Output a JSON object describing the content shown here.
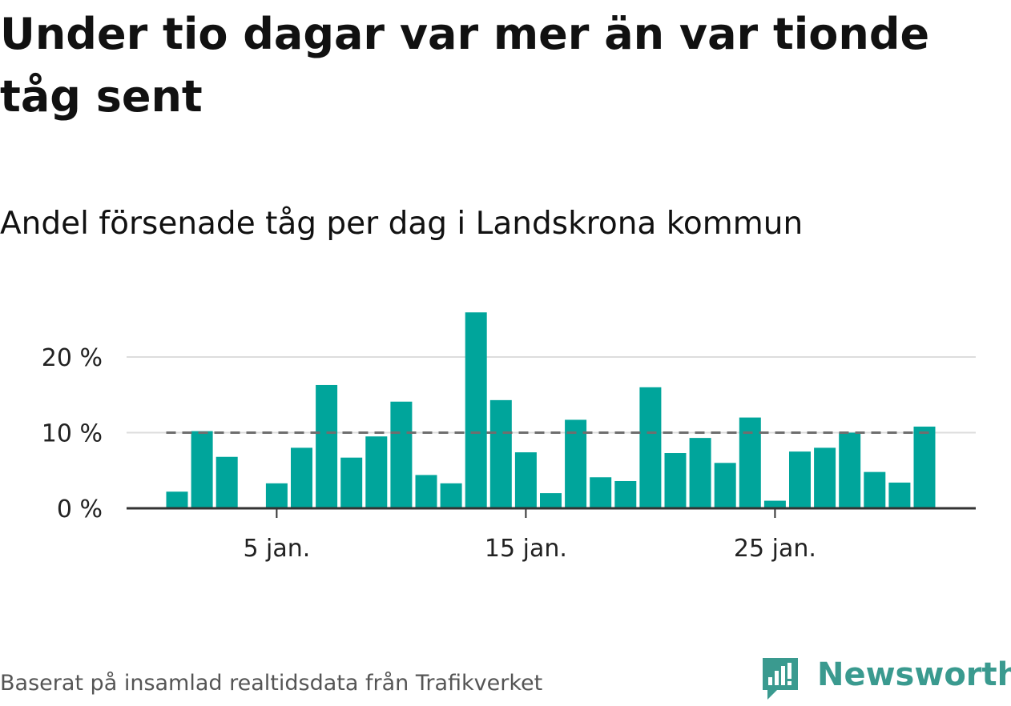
{
  "title": "Under tio dagar var mer än var tionde tåg sent",
  "subtitle": "Andel försenade tåg per dag i Landskrona kommun",
  "source": "Baserat på insamlad realtidsdata från Trafikverket",
  "logo": {
    "text": "Newsworthy",
    "icon": "newsworthy-bar-chart-icon",
    "color": "#3a9a8f"
  },
  "colors": {
    "bar": "#00a59b",
    "reference_line": "#6e6e6e",
    "grid": "#dddddd",
    "axis": "#333333"
  },
  "chart_data": {
    "type": "bar",
    "x": [
      1,
      2,
      3,
      4,
      5,
      6,
      7,
      8,
      9,
      10,
      11,
      12,
      13,
      14,
      15,
      16,
      17,
      18,
      19,
      20,
      21,
      22,
      23,
      24,
      25,
      26,
      27,
      28,
      29,
      30,
      31
    ],
    "values": [
      2.2,
      10.2,
      6.8,
      0,
      3.3,
      8.0,
      16.3,
      6.7,
      9.5,
      14.1,
      4.4,
      3.3,
      25.9,
      14.3,
      7.4,
      2.0,
      11.7,
      4.1,
      3.6,
      16.0,
      7.3,
      9.3,
      6.0,
      12.0,
      1.0,
      7.5,
      8.0,
      10.0,
      4.8,
      3.4,
      10.8
    ],
    "reference_line": 10,
    "ylim": [
      0,
      26
    ],
    "yticks": [
      {
        "value": 0,
        "label": "0 %"
      },
      {
        "value": 10,
        "label": "10 %"
      },
      {
        "value": 20,
        "label": "20 %"
      }
    ],
    "xticks": [
      {
        "value": 5,
        "label": "5 jan."
      },
      {
        "value": 15,
        "label": "15 jan."
      },
      {
        "value": 25,
        "label": "25 jan."
      }
    ],
    "xlabel": "",
    "ylabel": "",
    "grid": true,
    "legend": "none"
  }
}
